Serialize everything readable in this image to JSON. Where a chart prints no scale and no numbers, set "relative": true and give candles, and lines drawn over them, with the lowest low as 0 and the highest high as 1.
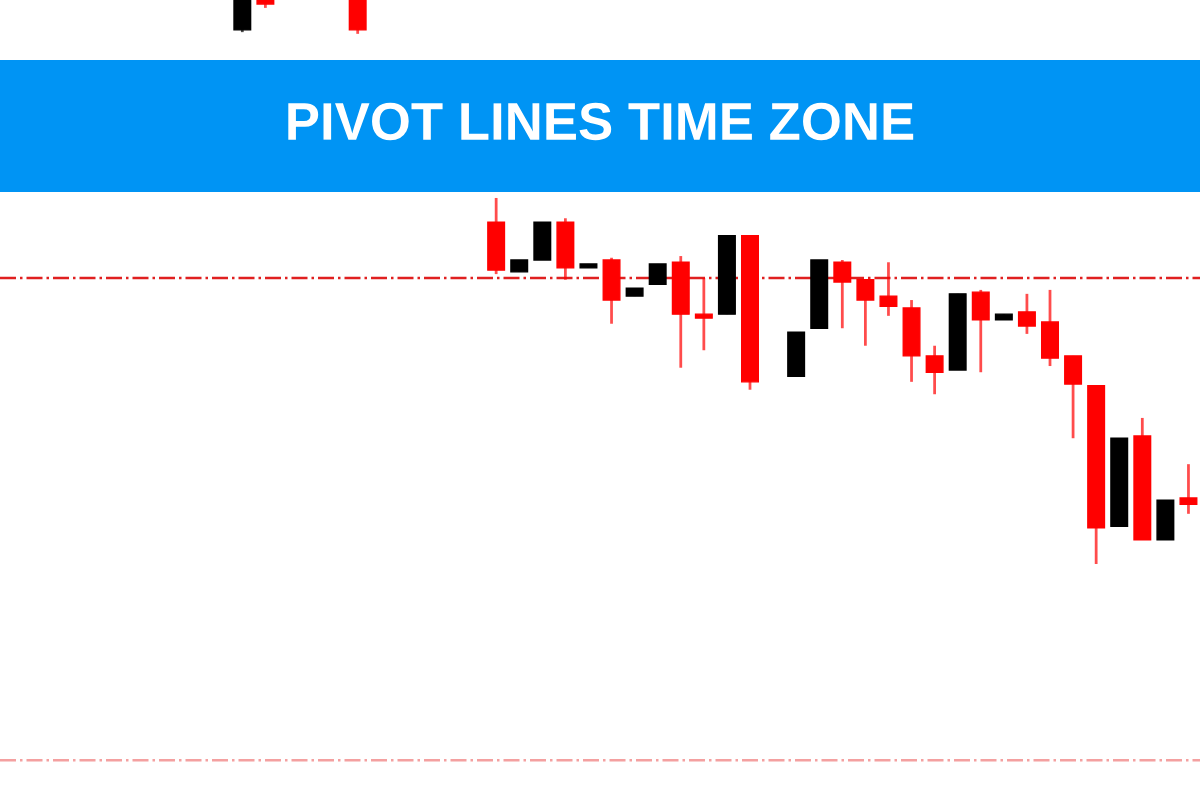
{
  "chart_data": {
    "type": "candlestick",
    "title": "PIVOT LINES TIME ZONE",
    "relative": true,
    "grid": false,
    "categories": [
      null,
      null,
      null,
      null,
      null,
      null,
      null,
      null,
      null,
      null,
      null,
      null,
      null,
      null,
      null,
      null,
      null,
      null,
      null,
      null,
      null,
      null,
      null,
      null,
      null,
      null,
      null,
      null,
      null,
      null,
      null,
      null,
      null,
      null,
      null,
      null,
      null,
      null,
      null,
      null,
      null,
      null,
      null,
      null,
      null,
      null,
      null,
      null,
      null,
      null,
      null,
      null
    ],
    "ohlc": [
      null,
      null,
      null,
      null,
      null,
      null,
      null,
      null,
      null,
      null,
      [
        0.947,
        1,
        0.943,
        1
      ],
      [
        1,
        1,
        0.986,
        0.993
      ],
      null,
      null,
      null,
      [
        1,
        1,
        0.94,
        0.947
      ],
      null,
      null,
      null,
      null,
      null,
      [
        0.606,
        0.649,
        0.514,
        0.521
      ],
      [
        0.518,
        0.539,
        0.518,
        0.539
      ],
      [
        0.539,
        0.606,
        0.539,
        0.606
      ],
      [
        0.606,
        0.613,
        0.504,
        0.525
      ],
      [
        0.525,
        0.532,
        0.525,
        0.532
      ],
      [
        0.539,
        0.543,
        0.426,
        0.468
      ],
      [
        0.475,
        0.489,
        0.475,
        0.489
      ],
      [
        0.496,
        0.532,
        0.496,
        0.532
      ],
      [
        0.535,
        0.546,
        0.348,
        0.443
      ],
      [
        0.443,
        0.507,
        0.379,
        0.436
      ],
      [
        0.443,
        0.582,
        0.443,
        0.582
      ],
      [
        0.582,
        0.582,
        0.309,
        0.323
      ],
      null,
      [
        0.333,
        0.411,
        0.333,
        0.411
      ],
      [
        0.418,
        0.539,
        0.418,
        0.539
      ],
      [
        0.535,
        0.539,
        0.418,
        0.5
      ],
      [
        0.504,
        0.504,
        0.387,
        0.468
      ],
      [
        0.475,
        0.535,
        0.44,
        0.457
      ],
      [
        0.454,
        0.468,
        0.323,
        0.369
      ],
      [
        0.369,
        0.387,
        0.301,
        0.34
      ],
      [
        0.344,
        0.479,
        0.344,
        0.479
      ],
      [
        0.482,
        0.486,
        0.34,
        0.433
      ],
      [
        0.433,
        0.443,
        0.433,
        0.443
      ],
      [
        0.447,
        0.479,
        0.408,
        0.422
      ],
      [
        0.429,
        0.486,
        0.351,
        0.365
      ],
      [
        0.369,
        0.369,
        0.223,
        0.319
      ],
      [
        0.316,
        0.316,
        0,
        0.064
      ],
      [
        0.067,
        0.223,
        0.067,
        0.223
      ],
      [
        0.227,
        0.259,
        0.043,
        0.043
      ],
      [
        0.043,
        0.113,
        0.043,
        0.113
      ],
      [
        0.117,
        0.177,
        0.089,
        0.106
      ]
    ],
    "colors": [
      "#000000",
      null,
      null,
      null,
      null,
      null,
      null,
      null,
      null,
      "#000000",
      "#000000",
      "#ff0000",
      null,
      null,
      null,
      "#ff0000",
      "#ff0000",
      "#ff0000",
      null,
      null,
      "#ff0000",
      "#ff0000",
      "#000000",
      "#000000",
      "#ff0000",
      "#000000",
      "#ff0000",
      "#000000",
      "#000000",
      "#ff0000",
      "#ff0000",
      "#000000",
      "#ff0000",
      null,
      "#000000",
      "#000000",
      "#ff0000",
      "#ff0000",
      "#ff0000",
      "#ff0000",
      "#ff0000",
      "#000000",
      "#ff0000",
      "#000000",
      "#ff0000",
      "#ff0000",
      "#ff0000",
      "#ff0000",
      "#000000",
      "#ff0000",
      "#000000",
      "#ff0000"
    ],
    "ref_lines": [
      {
        "axis": "y",
        "value": 0.507,
        "color": "#e02020",
        "line_style": "dashdot"
      },
      {
        "axis": "y",
        "value": -0.348,
        "color": "#f4a0a0",
        "line_style": "dashdot"
      }
    ]
  }
}
